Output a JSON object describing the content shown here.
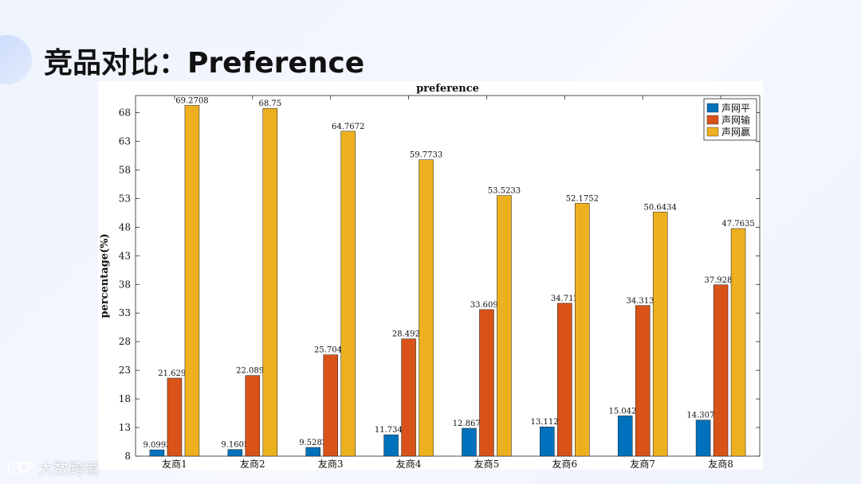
{
  "slide": {
    "title": "竞品对比：Preference"
  },
  "watermark": {
    "text": "大数跨境",
    "logo_icon": "cat-face-logo-icon"
  },
  "chart_data": {
    "type": "bar",
    "title": "preference",
    "xlabel": "",
    "ylabel": "percentage(%)",
    "ylim": [
      8,
      71
    ],
    "yticks": [
      8,
      13,
      18,
      23,
      28,
      33,
      38,
      43,
      48,
      53,
      58,
      63,
      68
    ],
    "grid": false,
    "legend_position": "top-right",
    "categories": [
      "友商1",
      "友商2",
      "友商3",
      "友商4",
      "友商5",
      "友商6",
      "友商7",
      "友商8"
    ],
    "series": [
      {
        "name": "声网平",
        "color": "#0072BD",
        "values": [
          9.0993,
          9.1605,
          9.5282,
          11.7341,
          12.8676,
          13.1127,
          15.0429,
          14.3076
        ],
        "labels": [
          "9.0993",
          "9.1605",
          "9.5282",
          "11.7341",
          "12.8676",
          "13.1127",
          "15.0429",
          "14.3076"
        ]
      },
      {
        "name": "声网输",
        "color": "#D95319",
        "values": [
          21.6299,
          22.0895,
          25.7047,
          28.4926,
          33.6091,
          34.712,
          34.3137,
          37.9289
        ],
        "labels": [
          "21.6299",
          "22.0895",
          "25.7047",
          "28.4926",
          "33.6091",
          "34.712",
          "34.3137",
          "37.9289"
        ]
      },
      {
        "name": "声网赢",
        "color": "#EDB120",
        "values": [
          69.2708,
          68.75,
          64.7672,
          59.7733,
          53.5233,
          52.1752,
          50.6434,
          47.7635
        ],
        "labels": [
          "69.2708",
          "68.75",
          "64.7672",
          "59.7733",
          "53.5233",
          "52.1752",
          "50.6434",
          "47.7635"
        ]
      }
    ]
  }
}
